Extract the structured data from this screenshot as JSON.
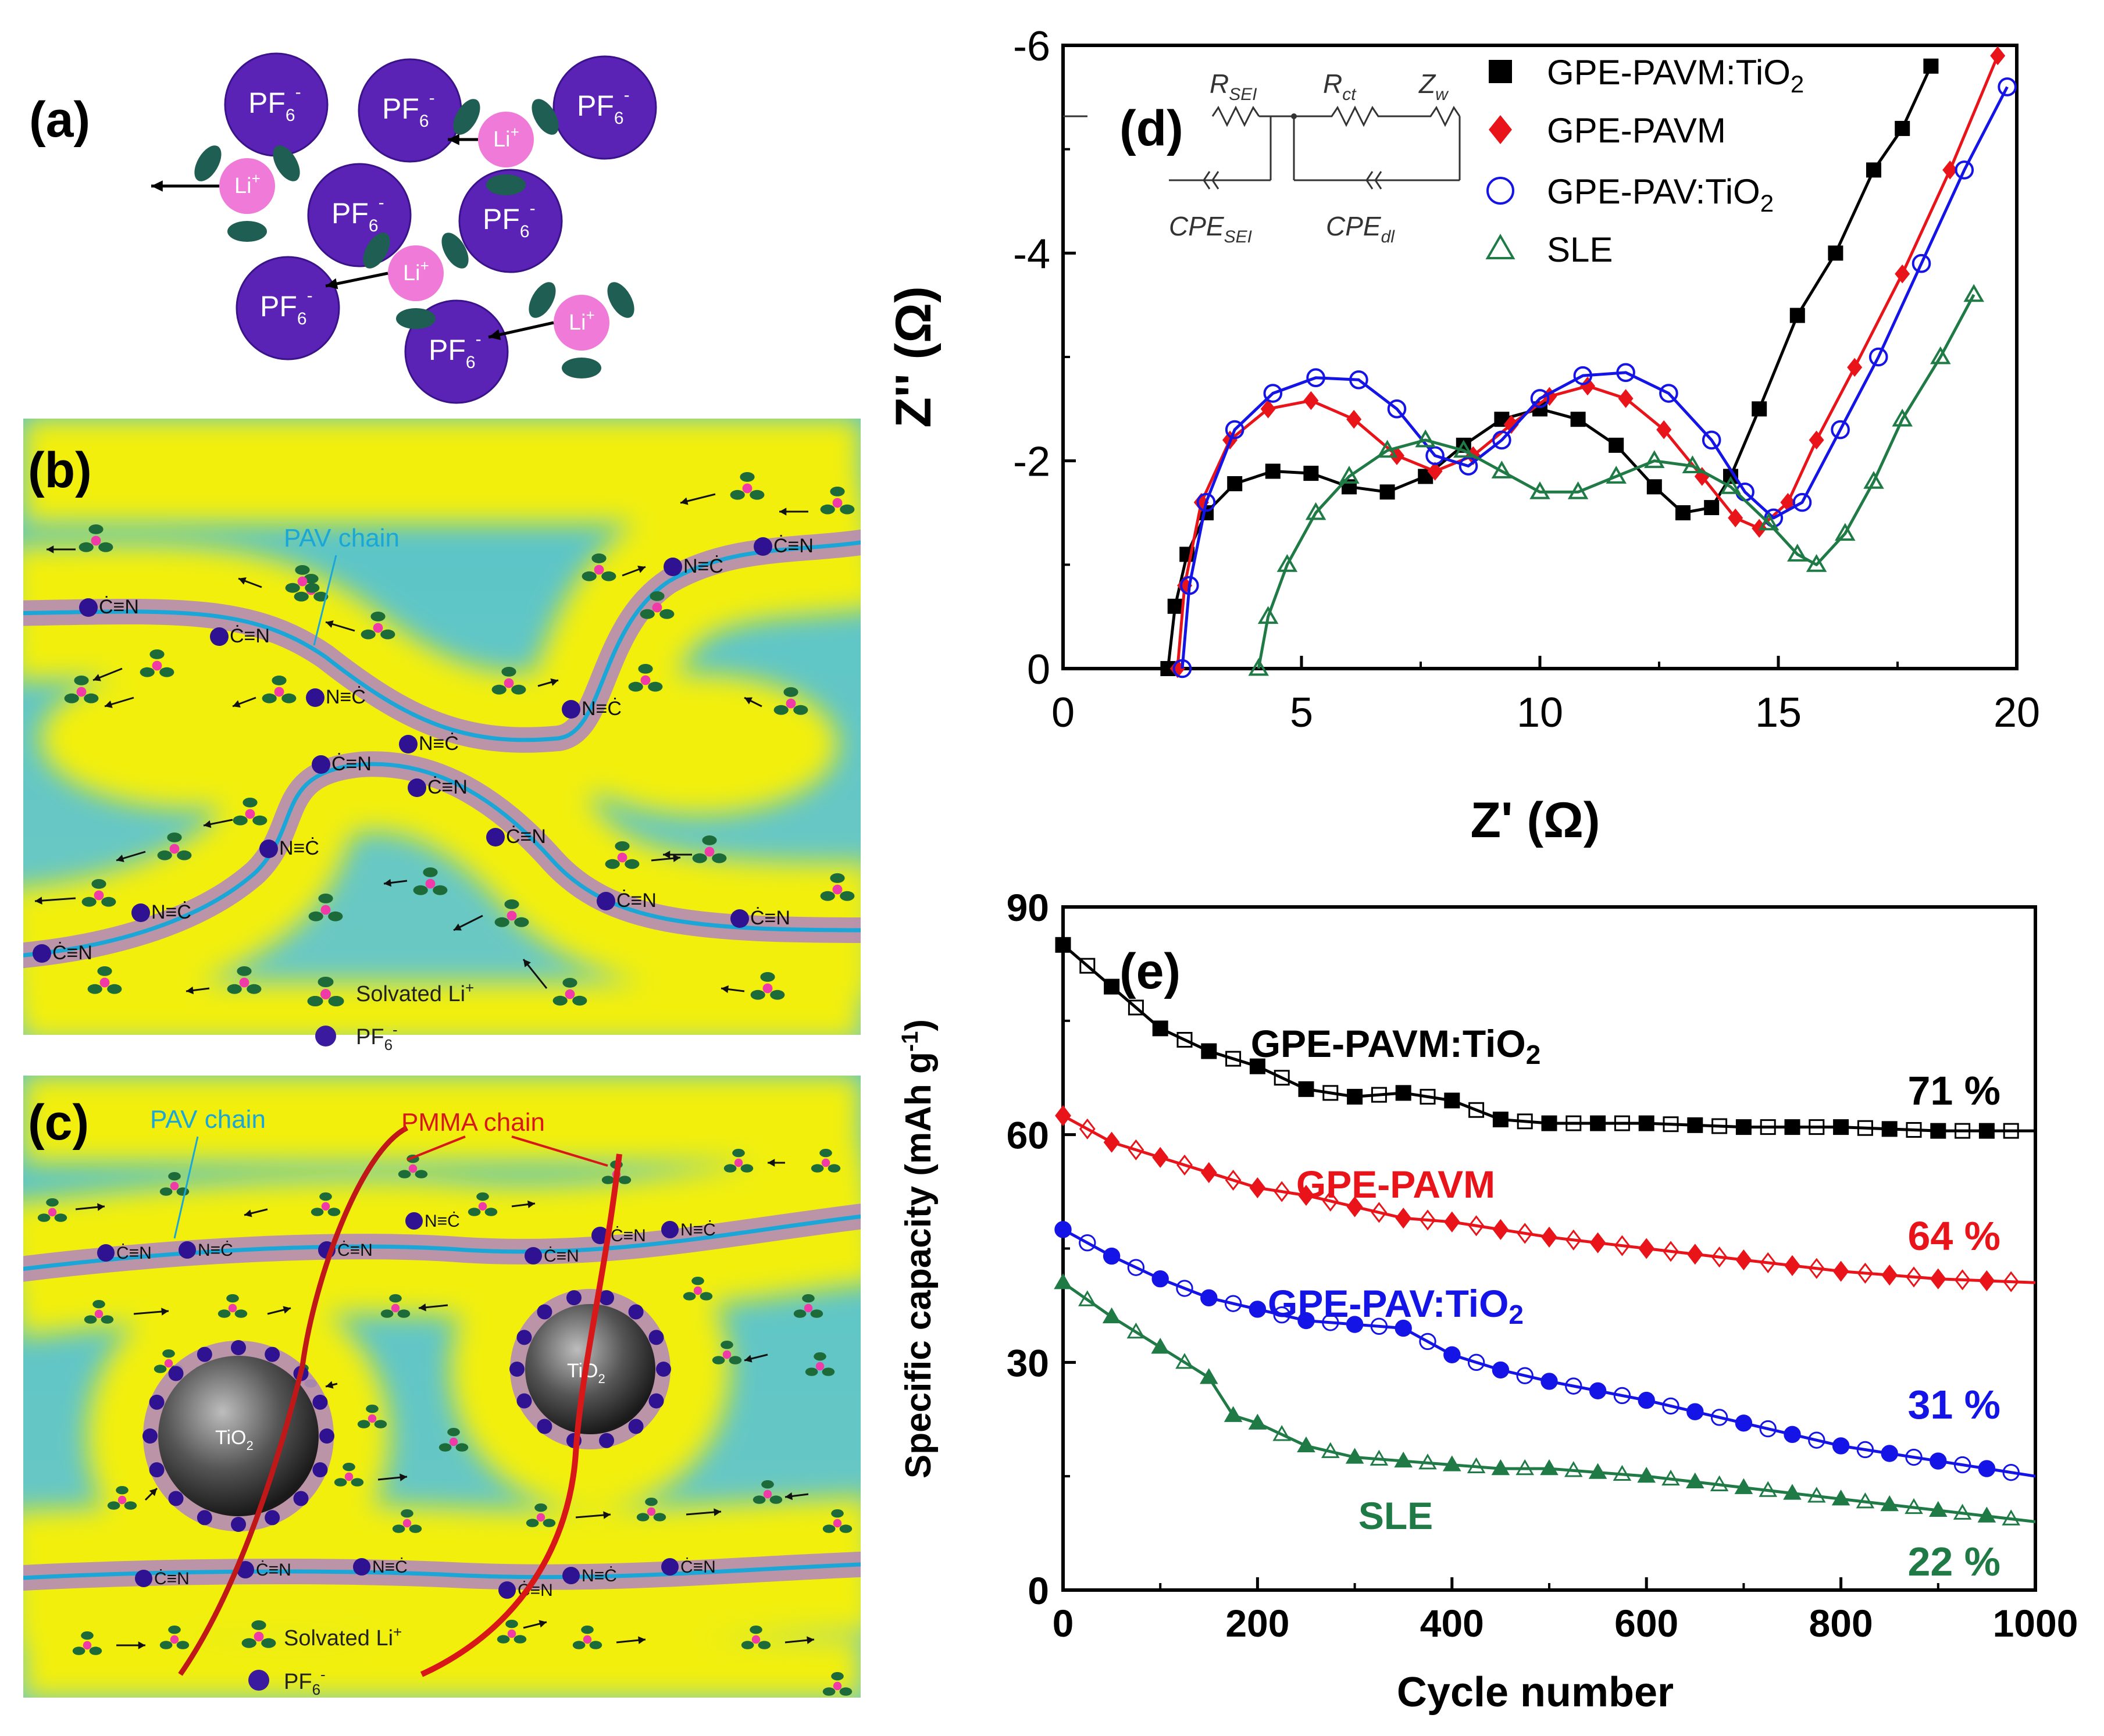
{
  "panels": {
    "a": {
      "letter": "(a)",
      "pf6": "PF",
      "pf6_sub": "6",
      "pf6_sup": "-",
      "li": "Li",
      "li_sup": "+"
    },
    "b": {
      "letter": "(b)",
      "pav_label": "PAV chain",
      "cn": "Ċ≡N",
      "nc": "N≡Ċ",
      "legend_li": "Solvated Li",
      "legend_li_sup": "+",
      "legend_pf6": "PF",
      "legend_pf6_sub": "6",
      "legend_pf6_sup": "-"
    },
    "c": {
      "letter": "(c)",
      "pav_label": "PAV chain",
      "pmma_label": "PMMA chain",
      "tio2": "TiO",
      "tio2_sub": "2",
      "cn": "Ċ≡N",
      "nc": "N≡Ċ",
      "legend_li": "Solvated Li",
      "legend_li_sup": "+",
      "legend_pf6": "PF",
      "legend_pf6_sub": "6",
      "legend_pf6_sup": "-"
    },
    "d": {
      "letter": "(d)",
      "circuit": {
        "rsei": "R",
        "rsei_sub": "SEI",
        "rct": "R",
        "rct_sub": "ct",
        "zw": "Z",
        "zw_sub": "w",
        "cpesei": "CPE",
        "cpesei_sub": "SEI",
        "cpedl": "CPE",
        "cpedl_sub": "dl"
      }
    },
    "e": {
      "letter": "(e)"
    }
  },
  "colors": {
    "black": "#000000",
    "red": "#e8141a",
    "blue": "#1414e6",
    "green": "#1f7a45",
    "pav": "#1aa6d6",
    "pmma": "#d81818",
    "pf6": "#4b1fa8",
    "li": "#f07ad8",
    "solvent": "#1f5e52"
  },
  "chart_data": [
    {
      "id": "d",
      "type": "line",
      "title": "",
      "xlabel": "Z' (Ω)",
      "ylabel": "Z'' (Ω)",
      "xlim": [
        0,
        20
      ],
      "ylim": [
        0,
        -6
      ],
      "xticks": [
        "0",
        "5",
        "10",
        "15",
        "20"
      ],
      "yticks": [
        "0",
        "-2",
        "-4",
        "-6"
      ],
      "legend_position": "top-right",
      "series": [
        {
          "name": "GPE-PAVM:TiO",
          "sub": "2",
          "marker": "square-filled",
          "color": "#000000",
          "points": [
            [
              2.2,
              0
            ],
            [
              2.35,
              -0.6
            ],
            [
              2.6,
              -1.1
            ],
            [
              3.0,
              -1.5
            ],
            [
              3.6,
              -1.78
            ],
            [
              4.4,
              -1.9
            ],
            [
              5.2,
              -1.88
            ],
            [
              6.0,
              -1.75
            ],
            [
              6.8,
              -1.7
            ],
            [
              7.6,
              -1.85
            ],
            [
              8.4,
              -2.15
            ],
            [
              9.2,
              -2.4
            ],
            [
              10.0,
              -2.5
            ],
            [
              10.8,
              -2.4
            ],
            [
              11.6,
              -2.15
            ],
            [
              12.4,
              -1.75
            ],
            [
              13.0,
              -1.5
            ],
            [
              13.6,
              -1.55
            ],
            [
              14.0,
              -1.85
            ],
            [
              14.6,
              -2.5
            ],
            [
              15.4,
              -3.4
            ],
            [
              16.2,
              -4.0
            ],
            [
              17.0,
              -4.8
            ],
            [
              17.6,
              -5.2
            ],
            [
              18.2,
              -5.8
            ]
          ]
        },
        {
          "name": "GPE-PAVM",
          "marker": "diamond-filled",
          "color": "#e8141a",
          "points": [
            [
              2.4,
              0
            ],
            [
              2.55,
              -0.8
            ],
            [
              2.9,
              -1.6
            ],
            [
              3.5,
              -2.2
            ],
            [
              4.3,
              -2.5
            ],
            [
              5.2,
              -2.58
            ],
            [
              6.1,
              -2.4
            ],
            [
              7.0,
              -2.05
            ],
            [
              7.8,
              -1.9
            ],
            [
              8.6,
              -2.05
            ],
            [
              9.4,
              -2.35
            ],
            [
              10.2,
              -2.62
            ],
            [
              11.0,
              -2.72
            ],
            [
              11.8,
              -2.6
            ],
            [
              12.6,
              -2.3
            ],
            [
              13.4,
              -1.85
            ],
            [
              14.1,
              -1.45
            ],
            [
              14.6,
              -1.35
            ],
            [
              15.2,
              -1.6
            ],
            [
              15.8,
              -2.2
            ],
            [
              16.6,
              -2.9
            ],
            [
              17.6,
              -3.8
            ],
            [
              18.6,
              -4.8
            ],
            [
              19.6,
              -5.9
            ]
          ]
        },
        {
          "name": "GPE-PAV:TiO",
          "sub": "2",
          "marker": "circle-open",
          "color": "#1414e6",
          "points": [
            [
              2.5,
              0
            ],
            [
              2.65,
              -0.8
            ],
            [
              3.0,
              -1.6
            ],
            [
              3.6,
              -2.3
            ],
            [
              4.4,
              -2.65
            ],
            [
              5.3,
              -2.8
            ],
            [
              6.2,
              -2.78
            ],
            [
              7.0,
              -2.5
            ],
            [
              7.8,
              -2.05
            ],
            [
              8.5,
              -1.95
            ],
            [
              9.2,
              -2.2
            ],
            [
              10.0,
              -2.6
            ],
            [
              10.9,
              -2.82
            ],
            [
              11.8,
              -2.85
            ],
            [
              12.7,
              -2.65
            ],
            [
              13.6,
              -2.2
            ],
            [
              14.3,
              -1.7
            ],
            [
              14.9,
              -1.45
            ],
            [
              15.5,
              -1.6
            ],
            [
              16.3,
              -2.3
            ],
            [
              17.1,
              -3.0
            ],
            [
              18.0,
              -3.9
            ],
            [
              18.9,
              -4.8
            ],
            [
              19.8,
              -5.6
            ]
          ]
        },
        {
          "name": "SLE",
          "marker": "triangle-open",
          "color": "#1f7a45",
          "points": [
            [
              4.1,
              0
            ],
            [
              4.3,
              -0.5
            ],
            [
              4.7,
              -1.0
            ],
            [
              5.3,
              -1.5
            ],
            [
              6.0,
              -1.85
            ],
            [
              6.8,
              -2.1
            ],
            [
              7.6,
              -2.2
            ],
            [
              8.4,
              -2.1
            ],
            [
              9.2,
              -1.9
            ],
            [
              10.0,
              -1.7
            ],
            [
              10.8,
              -1.7
            ],
            [
              11.6,
              -1.85
            ],
            [
              12.4,
              -2.0
            ],
            [
              13.2,
              -1.95
            ],
            [
              14.0,
              -1.75
            ],
            [
              14.8,
              -1.4
            ],
            [
              15.4,
              -1.1
            ],
            [
              15.8,
              -1.0
            ],
            [
              16.4,
              -1.3
            ],
            [
              17.0,
              -1.8
            ],
            [
              17.6,
              -2.4
            ],
            [
              18.4,
              -3.0
            ],
            [
              19.1,
              -3.6
            ]
          ]
        }
      ],
      "inset": "equivalent circuit"
    },
    {
      "id": "e",
      "type": "line",
      "title": "",
      "xlabel": "Cycle number",
      "ylabel": "Specific capacity (mAh g",
      "ylabel_sup": "-1",
      "ylabel_end": ")",
      "xlim": [
        0,
        1000
      ],
      "ylim": [
        0,
        90
      ],
      "xticks": [
        "0",
        "200",
        "400",
        "600",
        "800",
        "1000"
      ],
      "yticks": [
        "0",
        "30",
        "60",
        "90"
      ],
      "series": [
        {
          "name": "GPE-PAVM:TiO",
          "sub": "2",
          "color": "#000000",
          "retention": "71 %",
          "points": [
            [
              0,
              85
            ],
            [
              100,
              74
            ],
            [
              150,
              71
            ],
            [
              200,
              69
            ],
            [
              250,
              66
            ],
            [
              300,
              65
            ],
            [
              350,
              65.5
            ],
            [
              400,
              64.5
            ],
            [
              450,
              62
            ],
            [
              500,
              61.5
            ],
            [
              600,
              61.5
            ],
            [
              700,
              61
            ],
            [
              800,
              61
            ],
            [
              900,
              60.5
            ],
            [
              1000,
              60.5
            ]
          ]
        },
        {
          "name": "GPE-PAVM",
          "color": "#e8141a",
          "retention": "64 %",
          "points": [
            [
              0,
              62.5
            ],
            [
              50,
              59
            ],
            [
              100,
              57
            ],
            [
              150,
              55
            ],
            [
              200,
              53
            ],
            [
              250,
              52
            ],
            [
              300,
              50.5
            ],
            [
              350,
              49
            ],
            [
              400,
              48.5
            ],
            [
              450,
              47.5
            ],
            [
              500,
              46.5
            ],
            [
              600,
              45
            ],
            [
              700,
              43.5
            ],
            [
              800,
              42
            ],
            [
              900,
              41
            ],
            [
              1000,
              40.5
            ]
          ]
        },
        {
          "name": "GPE-PAV:TiO",
          "sub": "2",
          "color": "#1414e6",
          "retention": "31 %",
          "points": [
            [
              0,
              47.5
            ],
            [
              50,
              44
            ],
            [
              100,
              41
            ],
            [
              150,
              38.5
            ],
            [
              200,
              37
            ],
            [
              250,
              35.5
            ],
            [
              300,
              35
            ],
            [
              350,
              34.5
            ],
            [
              400,
              31
            ],
            [
              450,
              29
            ],
            [
              500,
              27.5
            ],
            [
              600,
              25
            ],
            [
              700,
              22
            ],
            [
              800,
              19
            ],
            [
              900,
              17
            ],
            [
              1000,
              15
            ]
          ]
        },
        {
          "name": "SLE",
          "color": "#1f7a45",
          "retention": "22 %",
          "points": [
            [
              0,
              40.5
            ],
            [
              50,
              36
            ],
            [
              100,
              32
            ],
            [
              150,
              28
            ],
            [
              175,
              23
            ],
            [
              200,
              22
            ],
            [
              250,
              19
            ],
            [
              300,
              17.5
            ],
            [
              350,
              17
            ],
            [
              400,
              16.5
            ],
            [
              450,
              16
            ],
            [
              500,
              16
            ],
            [
              600,
              15
            ],
            [
              700,
              13.5
            ],
            [
              800,
              12
            ],
            [
              900,
              10.5
            ],
            [
              1000,
              9
            ]
          ]
        }
      ]
    }
  ]
}
